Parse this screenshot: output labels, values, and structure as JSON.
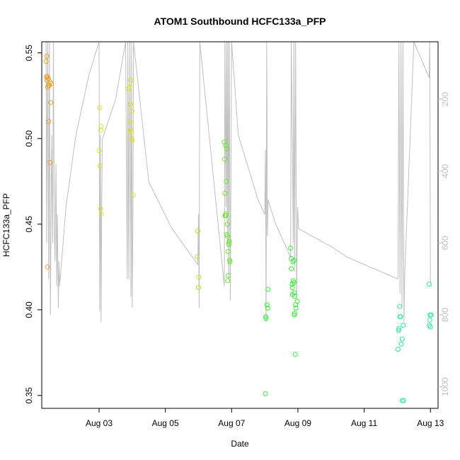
{
  "chart_data": {
    "type": "scatter",
    "title": "ATOM1 Southbound HCFC133a_PFP",
    "xlabel": "Date",
    "ylabel": "HCFC133a_PFP",
    "x_unit": "days (August, day-of-month)",
    "xlim": [
      1.27,
      13.23
    ],
    "ylim": [
      0.3425,
      0.5565
    ],
    "x_ticks": [
      {
        "value": 3,
        "label": "Aug 03"
      },
      {
        "value": 5,
        "label": "Aug 05"
      },
      {
        "value": 7,
        "label": "Aug 07"
      },
      {
        "value": 9,
        "label": "Aug 09"
      },
      {
        "value": 11,
        "label": "Aug 11"
      },
      {
        "value": 13,
        "label": "Aug 13"
      }
    ],
    "y_ticks": [
      0.35,
      0.4,
      0.45,
      0.5,
      0.55
    ],
    "y2_ticks": [
      200,
      400,
      600,
      800,
      1000
    ],
    "y2_range_top_to_bottom": [
      40,
      1060
    ],
    "y2_color": "#bebebe",
    "grid": false,
    "legend": "none",
    "series": [
      {
        "color": "#e8a02c",
        "points": [
          [
            1.42,
            0.548
          ],
          [
            1.4,
            0.545
          ],
          [
            1.41,
            0.536
          ],
          [
            1.44,
            0.536
          ],
          [
            1.43,
            0.534
          ],
          [
            1.47,
            0.535
          ],
          [
            1.52,
            0.533
          ],
          [
            1.56,
            0.532
          ],
          [
            1.47,
            0.531
          ],
          [
            1.45,
            0.53
          ],
          [
            1.5,
            0.531
          ],
          [
            1.54,
            0.521
          ],
          [
            1.48,
            0.51
          ],
          [
            1.52,
            0.486
          ],
          [
            1.44,
            0.425
          ]
        ]
      },
      {
        "color": "#dede2a",
        "points": [
          [
            3.02,
            0.518
          ],
          [
            3.06,
            0.507
          ],
          [
            3.05,
            0.505
          ],
          [
            3.0,
            0.493
          ],
          [
            3.03,
            0.484
          ],
          [
            3.05,
            0.459
          ],
          [
            3.07,
            0.456
          ],
          [
            3.88,
            0.529
          ],
          [
            3.92,
            0.53
          ],
          [
            3.96,
            0.534
          ],
          [
            3.95,
            0.52
          ],
          [
            3.99,
            0.516
          ],
          [
            3.94,
            0.51
          ],
          [
            3.96,
            0.505
          ],
          [
            3.92,
            0.504
          ],
          [
            3.98,
            0.5
          ],
          [
            4.0,
            0.499
          ],
          [
            4.03,
            0.467
          ]
        ]
      },
      {
        "color": "#a6e72c",
        "points": [
          [
            5.98,
            0.446
          ],
          [
            5.96,
            0.431
          ],
          [
            6.01,
            0.419
          ],
          [
            6.0,
            0.413
          ]
        ]
      },
      {
        "color": "#6be62e",
        "points": [
          [
            6.78,
            0.498
          ],
          [
            6.82,
            0.496
          ],
          [
            6.85,
            0.494
          ],
          [
            6.79,
            0.488
          ],
          [
            6.84,
            0.475
          ],
          [
            6.8,
            0.468
          ],
          [
            6.83,
            0.456
          ],
          [
            6.8,
            0.455
          ],
          [
            6.82,
            0.455
          ],
          [
            6.87,
            0.45
          ],
          [
            6.85,
            0.444
          ],
          [
            6.87,
            0.443
          ],
          [
            6.91,
            0.439
          ],
          [
            6.93,
            0.44
          ],
          [
            6.92,
            0.438
          ],
          [
            6.89,
            0.434
          ],
          [
            6.94,
            0.429
          ],
          [
            6.95,
            0.428
          ],
          [
            6.9,
            0.42
          ],
          [
            6.88,
            0.417
          ]
        ]
      },
      {
        "color": "#3ae83a",
        "points": [
          [
            8.1,
            0.412
          ],
          [
            8.07,
            0.403
          ],
          [
            8.09,
            0.401
          ],
          [
            8.03,
            0.396
          ],
          [
            8.04,
            0.395
          ],
          [
            8.02,
            0.351
          ],
          [
            8.78,
            0.436
          ],
          [
            8.8,
            0.43
          ],
          [
            8.88,
            0.429
          ],
          [
            8.85,
            0.428
          ],
          [
            8.8,
            0.424
          ],
          [
            8.86,
            0.417
          ],
          [
            8.88,
            0.416
          ],
          [
            8.83,
            0.415
          ],
          [
            8.84,
            0.413
          ],
          [
            8.89,
            0.41
          ],
          [
            8.84,
            0.409
          ],
          [
            8.9,
            0.408
          ],
          [
            8.98,
            0.405
          ],
          [
            8.93,
            0.403
          ],
          [
            8.94,
            0.401
          ],
          [
            8.9,
            0.398
          ],
          [
            8.89,
            0.397
          ],
          [
            8.92,
            0.374
          ]
        ]
      },
      {
        "color": "#30e69a",
        "points": [
          [
            12.07,
            0.402
          ],
          [
            12.08,
            0.396
          ],
          [
            12.1,
            0.396
          ],
          [
            12.18,
            0.391
          ],
          [
            12.05,
            0.389
          ],
          [
            12.04,
            0.388
          ],
          [
            12.15,
            0.383
          ],
          [
            12.12,
            0.38
          ],
          [
            12.02,
            0.377
          ],
          [
            12.15,
            0.347
          ],
          [
            12.19,
            0.347
          ],
          [
            12.96,
            0.415
          ],
          [
            12.99,
            0.397
          ],
          [
            13.02,
            0.397
          ],
          [
            12.98,
            0.394
          ],
          [
            12.97,
            0.391
          ],
          [
            13.0,
            0.39
          ]
        ]
      }
    ],
    "altitude_line": {
      "color": "#bebebe",
      "points": [
        [
          1.4,
          40
        ],
        [
          1.42,
          600
        ],
        [
          1.45,
          40
        ],
        [
          1.48,
          700
        ],
        [
          1.5,
          40
        ],
        [
          1.53,
          800
        ],
        [
          1.57,
          300
        ],
        [
          1.6,
          600
        ],
        [
          1.62,
          40
        ],
        [
          1.65,
          560
        ],
        [
          1.67,
          650
        ],
        [
          1.7,
          380
        ],
        [
          1.72,
          720
        ],
        [
          1.74,
          520
        ],
        [
          1.77,
          780
        ],
        [
          1.79,
          650
        ],
        [
          1.81,
          720
        ],
        [
          2.0,
          500
        ],
        [
          2.3,
          300
        ],
        [
          2.7,
          130
        ],
        [
          3.0,
          40
        ],
        [
          3.02,
          790
        ],
        [
          3.04,
          300
        ],
        [
          3.06,
          820
        ],
        [
          3.08,
          500
        ],
        [
          3.1,
          310
        ],
        [
          3.5,
          200
        ],
        [
          3.8,
          40
        ],
        [
          3.85,
          700
        ],
        [
          3.87,
          40
        ],
        [
          3.9,
          700
        ],
        [
          3.93,
          40
        ],
        [
          3.96,
          750
        ],
        [
          3.98,
          40
        ],
        [
          4.0,
          780
        ],
        [
          4.02,
          560
        ],
        [
          4.04,
          40
        ],
        [
          4.5,
          430
        ],
        [
          5.2,
          560
        ],
        [
          5.98,
          660
        ],
        [
          6.0,
          520
        ],
        [
          6.02,
          780
        ],
        [
          6.04,
          40
        ],
        [
          6.78,
          720
        ],
        [
          6.8,
          40
        ],
        [
          6.83,
          500
        ],
        [
          6.85,
          40
        ],
        [
          6.87,
          600
        ],
        [
          6.89,
          40
        ],
        [
          6.91,
          700
        ],
        [
          6.93,
          40
        ],
        [
          6.96,
          760
        ],
        [
          7.0,
          40
        ],
        [
          7.2,
          300
        ],
        [
          7.8,
          480
        ],
        [
          8.0,
          520
        ],
        [
          8.02,
          340
        ],
        [
          8.04,
          820
        ],
        [
          8.06,
          40
        ],
        [
          8.08,
          580
        ],
        [
          8.1,
          480
        ],
        [
          8.3,
          540
        ],
        [
          8.78,
          640
        ],
        [
          8.8,
          40
        ],
        [
          8.83,
          300
        ],
        [
          8.86,
          600
        ],
        [
          8.88,
          40
        ],
        [
          8.9,
          680
        ],
        [
          8.93,
          40
        ],
        [
          8.96,
          760
        ],
        [
          8.99,
          500
        ],
        [
          9.02,
          560
        ],
        [
          10.0,
          610
        ],
        [
          10.5,
          640
        ],
        [
          12.02,
          700
        ],
        [
          12.05,
          40
        ],
        [
          12.08,
          740
        ],
        [
          12.11,
          40
        ],
        [
          12.14,
          780
        ],
        [
          12.17,
          40
        ],
        [
          12.2,
          820
        ],
        [
          12.22,
          700
        ],
        [
          12.5,
          40
        ],
        [
          12.96,
          140
        ],
        [
          12.98,
          40
        ],
        [
          13.0,
          700
        ],
        [
          13.02,
          720
        ]
      ]
    }
  }
}
